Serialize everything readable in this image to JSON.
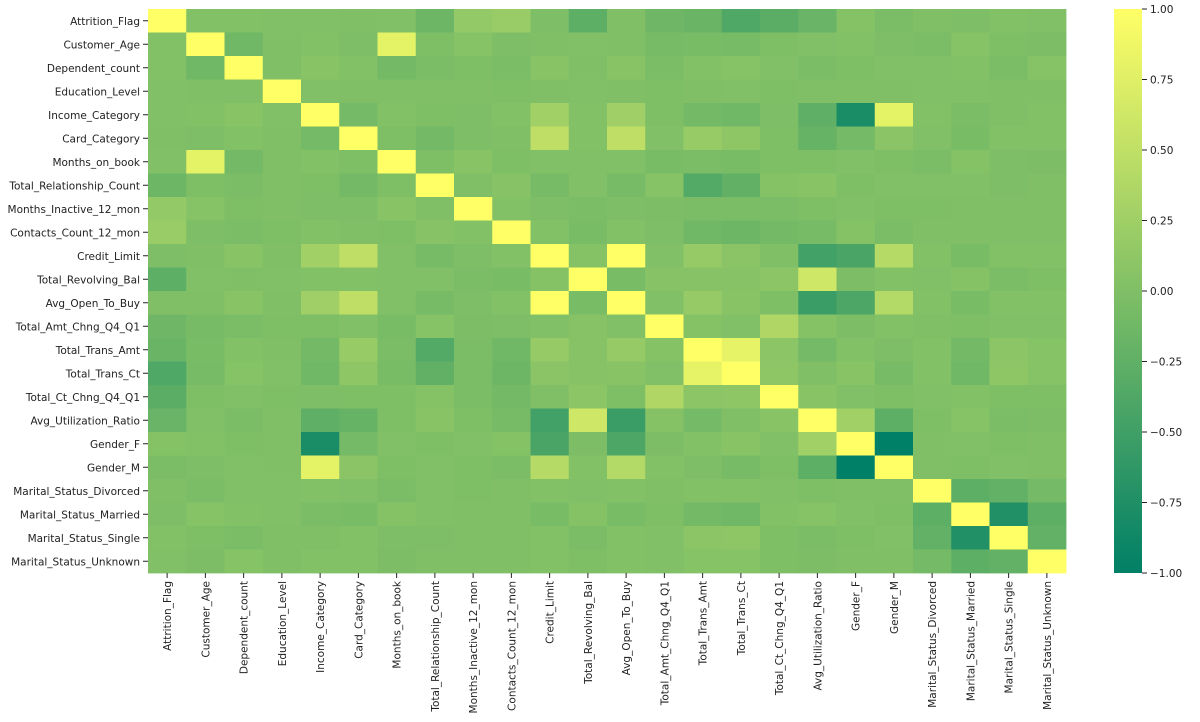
{
  "chart_data": {
    "type": "heatmap",
    "title": "",
    "xlabel": "",
    "ylabel": "",
    "labels": [
      "Attrition_Flag",
      "Customer_Age",
      "Dependent_count",
      "Education_Level",
      "Income_Category",
      "Card_Category",
      "Months_on_book",
      "Total_Relationship_Count",
      "Months_Inactive_12_mon",
      "Contacts_Count_12_mon",
      "Credit_Limit",
      "Total_Revolving_Bal",
      "Avg_Open_To_Buy",
      "Total_Amt_Chng_Q4_Q1",
      "Total_Trans_Amt",
      "Total_Trans_Ct",
      "Total_Ct_Chng_Q4_Q1",
      "Avg_Utilization_Ratio",
      "Gender_F",
      "Gender_M",
      "Marital_Status_Divorced",
      "Marital_Status_Married",
      "Marital_Status_Single",
      "Marital_Status_Unknown"
    ],
    "values": [
      [
        1.0,
        0.02,
        0.02,
        0.01,
        0.01,
        0.0,
        0.01,
        -0.15,
        0.15,
        0.2,
        -0.02,
        -0.26,
        0.0,
        -0.13,
        -0.17,
        -0.37,
        -0.29,
        -0.18,
        0.04,
        -0.04,
        0.0,
        -0.02,
        0.02,
        0.01
      ],
      [
        0.02,
        1.0,
        -0.12,
        0.0,
        0.02,
        -0.02,
        0.79,
        -0.01,
        0.05,
        -0.02,
        0.0,
        0.01,
        0.0,
        -0.06,
        -0.05,
        -0.07,
        -0.01,
        0.01,
        0.02,
        -0.02,
        -0.04,
        0.05,
        -0.01,
        -0.03
      ],
      [
        0.02,
        -0.12,
        1.0,
        0.0,
        0.07,
        0.03,
        -0.1,
        -0.04,
        -0.01,
        -0.04,
        0.07,
        0.0,
        0.07,
        -0.04,
        0.03,
        0.05,
        0.01,
        -0.04,
        -0.01,
        0.01,
        0.01,
        0.02,
        -0.04,
        0.05
      ],
      [
        0.01,
        0.0,
        0.0,
        1.0,
        0.01,
        0.0,
        0.0,
        0.0,
        0.0,
        -0.01,
        0.0,
        0.01,
        0.0,
        -0.01,
        0.0,
        0.01,
        -0.01,
        0.0,
        0.0,
        0.0,
        0.01,
        0.01,
        0.0,
        0.0
      ],
      [
        0.01,
        0.02,
        0.07,
        0.01,
        1.0,
        -0.08,
        0.03,
        -0.01,
        -0.02,
        0.02,
        0.26,
        0.03,
        0.25,
        -0.01,
        -0.09,
        -0.11,
        -0.02,
        -0.25,
        -0.79,
        0.79,
        0.02,
        -0.04,
        0.0,
        0.02
      ],
      [
        0.0,
        -0.02,
        0.03,
        0.0,
        -0.08,
        1.0,
        -0.01,
        -0.09,
        -0.02,
        0.0,
        0.49,
        0.03,
        0.49,
        0.01,
        0.18,
        0.11,
        -0.01,
        -0.2,
        -0.08,
        0.08,
        0.01,
        -0.05,
        0.03,
        0.03
      ],
      [
        0.01,
        0.79,
        -0.1,
        0.0,
        0.03,
        -0.01,
        1.0,
        -0.01,
        0.07,
        -0.01,
        0.01,
        0.01,
        0.01,
        -0.05,
        -0.04,
        -0.05,
        -0.01,
        -0.01,
        0.01,
        -0.01,
        -0.04,
        0.04,
        -0.02,
        -0.03
      ],
      [
        -0.15,
        -0.01,
        -0.04,
        0.0,
        -0.01,
        -0.09,
        -0.01,
        1.0,
        -0.0,
        0.06,
        -0.07,
        0.01,
        -0.07,
        0.05,
        -0.35,
        -0.24,
        0.04,
        0.07,
        -0.01,
        0.01,
        0.01,
        0.01,
        -0.02,
        0.0
      ],
      [
        0.15,
        0.05,
        -0.01,
        0.0,
        -0.02,
        -0.02,
        0.07,
        -0.0,
        1.0,
        0.03,
        -0.02,
        -0.04,
        -0.02,
        -0.03,
        -0.04,
        -0.04,
        -0.04,
        -0.01,
        0.01,
        -0.01,
        -0.01,
        0.0,
        0.0,
        0.0
      ],
      [
        0.2,
        -0.02,
        -0.04,
        -0.01,
        0.02,
        0.0,
        -0.01,
        0.06,
        0.03,
        1.0,
        0.02,
        -0.05,
        0.03,
        -0.02,
        -0.11,
        -0.15,
        -0.09,
        -0.06,
        0.04,
        -0.04,
        0.0,
        0.0,
        0.0,
        0.0
      ],
      [
        -0.02,
        0.0,
        0.07,
        0.0,
        0.26,
        0.49,
        0.01,
        -0.07,
        -0.02,
        0.02,
        1.0,
        0.04,
        1.0,
        0.01,
        0.17,
        0.08,
        -0.0,
        -0.48,
        -0.42,
        0.42,
        0.03,
        -0.05,
        0.02,
        0.03
      ],
      [
        -0.26,
        0.01,
        0.0,
        0.01,
        0.03,
        0.03,
        0.01,
        0.01,
        -0.04,
        -0.05,
        0.04,
        1.0,
        -0.05,
        0.06,
        0.06,
        0.06,
        0.09,
        0.62,
        -0.03,
        0.03,
        0.01,
        0.04,
        -0.04,
        -0.01
      ],
      [
        0.0,
        0.0,
        0.07,
        0.0,
        0.25,
        0.49,
        0.01,
        -0.07,
        -0.02,
        0.03,
        1.0,
        -0.05,
        1.0,
        0.01,
        0.17,
        0.07,
        -0.01,
        -0.54,
        -0.4,
        0.4,
        0.03,
        -0.05,
        0.02,
        0.03
      ],
      [
        -0.13,
        -0.06,
        -0.04,
        -0.01,
        -0.01,
        0.01,
        -0.05,
        0.05,
        -0.03,
        -0.02,
        0.01,
        0.06,
        0.01,
        1.0,
        0.04,
        0.01,
        0.38,
        0.04,
        -0.03,
        0.03,
        0.0,
        -0.01,
        0.01,
        0.01
      ],
      [
        -0.17,
        -0.05,
        0.03,
        0.0,
        -0.09,
        0.18,
        -0.04,
        -0.35,
        -0.04,
        -0.11,
        0.17,
        0.06,
        0.17,
        0.04,
        1.0,
        0.81,
        0.09,
        -0.08,
        0.02,
        -0.02,
        0.03,
        -0.1,
        0.09,
        0.05
      ],
      [
        -0.37,
        -0.07,
        0.05,
        0.01,
        -0.11,
        0.11,
        -0.05,
        -0.24,
        -0.04,
        -0.15,
        0.08,
        0.06,
        0.07,
        0.01,
        0.81,
        1.0,
        0.11,
        0.0,
        0.07,
        -0.07,
        0.03,
        -0.12,
        0.11,
        0.05
      ],
      [
        -0.29,
        -0.01,
        0.01,
        -0.01,
        -0.02,
        -0.01,
        -0.01,
        0.04,
        -0.04,
        -0.09,
        -0.0,
        0.09,
        -0.01,
        0.38,
        0.09,
        0.11,
        1.0,
        0.07,
        0.01,
        -0.01,
        0.01,
        0.02,
        -0.01,
        -0.01
      ],
      [
        -0.18,
        0.01,
        -0.04,
        0.0,
        -0.25,
        -0.2,
        -0.01,
        0.07,
        -0.01,
        -0.06,
        -0.48,
        0.62,
        -0.54,
        0.04,
        -0.08,
        0.0,
        0.07,
        1.0,
        0.26,
        -0.26,
        -0.01,
        0.05,
        -0.04,
        -0.03
      ],
      [
        0.04,
        0.02,
        -0.01,
        0.0,
        -0.79,
        -0.08,
        0.01,
        -0.01,
        0.01,
        0.04,
        -0.42,
        -0.03,
        -0.4,
        -0.03,
        0.02,
        0.07,
        0.01,
        0.26,
        1.0,
        -1.0,
        0.0,
        0.01,
        -0.01,
        0.0
      ],
      [
        -0.04,
        -0.02,
        0.01,
        0.0,
        0.79,
        0.08,
        -0.01,
        0.01,
        -0.01,
        -0.04,
        0.42,
        0.03,
        0.4,
        0.03,
        -0.02,
        -0.07,
        -0.01,
        -0.26,
        -1.0,
        1.0,
        0.0,
        -0.01,
        0.01,
        0.0
      ],
      [
        0.0,
        -0.04,
        0.01,
        0.01,
        0.02,
        0.01,
        -0.04,
        0.01,
        -0.01,
        0.0,
        0.03,
        0.01,
        0.03,
        0.0,
        0.03,
        0.03,
        0.01,
        -0.01,
        0.0,
        0.0,
        1.0,
        -0.26,
        -0.23,
        -0.08
      ],
      [
        -0.02,
        0.05,
        0.02,
        0.01,
        -0.04,
        -0.05,
        0.04,
        0.01,
        0.0,
        0.0,
        -0.05,
        0.04,
        -0.05,
        -0.01,
        -0.1,
        -0.12,
        0.02,
        0.05,
        0.01,
        -0.01,
        -0.26,
        1.0,
        -0.74,
        -0.26
      ],
      [
        0.02,
        -0.01,
        -0.04,
        0.0,
        0.0,
        0.03,
        -0.02,
        -0.02,
        0.0,
        0.0,
        0.02,
        -0.04,
        0.02,
        0.01,
        0.09,
        0.11,
        -0.01,
        -0.04,
        -0.01,
        0.01,
        -0.23,
        -0.74,
        1.0,
        -0.22
      ],
      [
        0.01,
        -0.03,
        0.05,
        0.0,
        0.02,
        0.03,
        -0.03,
        0.0,
        0.0,
        0.0,
        0.03,
        -0.01,
        0.03,
        0.01,
        0.05,
        0.05,
        -0.01,
        -0.03,
        0.0,
        0.0,
        -0.08,
        -0.26,
        -0.22,
        1.0
      ]
    ],
    "colorscale": {
      "name": "summer",
      "min": -1.0,
      "max": 1.0,
      "low_color": "#008066",
      "high_color": "#ffff66"
    },
    "colorbar": {
      "ticks": [
        "1.00",
        "0.75",
        "0.50",
        "0.25",
        "0.00",
        "−0.25",
        "−0.50",
        "−0.75",
        "−1.00"
      ],
      "tick_values": [
        1.0,
        0.75,
        0.5,
        0.25,
        0.0,
        -0.25,
        -0.5,
        -0.75,
        -1.0
      ]
    }
  }
}
